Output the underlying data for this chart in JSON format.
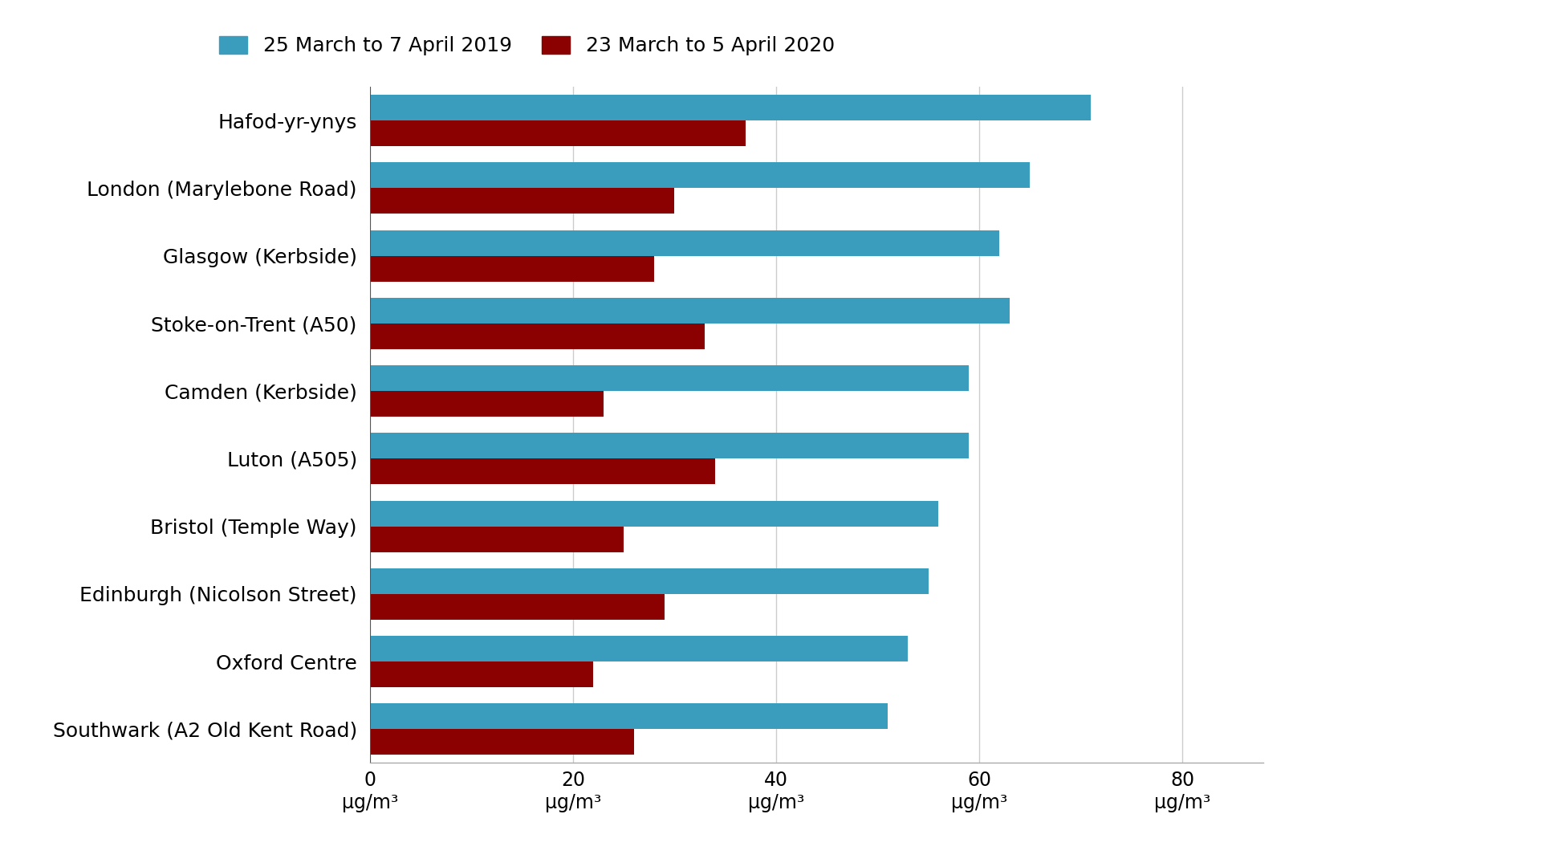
{
  "locations": [
    "Hafod-yr-ynys",
    "London (Marylebone Road)",
    "Glasgow (Kerbside)",
    "Stoke-on-Trent (A50)",
    "Camden (Kerbside)",
    "Luton (A505)",
    "Bristol (Temple Way)",
    "Edinburgh (Nicolson Street)",
    "Oxford Centre",
    "Southwark (A2 Old Kent Road)"
  ],
  "values_2019": [
    71,
    65,
    62,
    63,
    59,
    59,
    56,
    55,
    53,
    51
  ],
  "values_2020": [
    37,
    30,
    28,
    33,
    23,
    34,
    25,
    29,
    22,
    26
  ],
  "color_2019": "#3a9dbe",
  "color_2020": "#8b0000",
  "legend_2019": "25 March to 7 April 2019",
  "legend_2020": "23 March to 5 April 2020",
  "xlabel_unit": "μg/m³",
  "xlim": [
    0,
    88
  ],
  "xticks": [
    0,
    20,
    40,
    60,
    80
  ],
  "background_color": "#ffffff",
  "bar_height": 0.38,
  "label_fontsize": 18,
  "tick_fontsize": 17,
  "legend_fontsize": 18
}
